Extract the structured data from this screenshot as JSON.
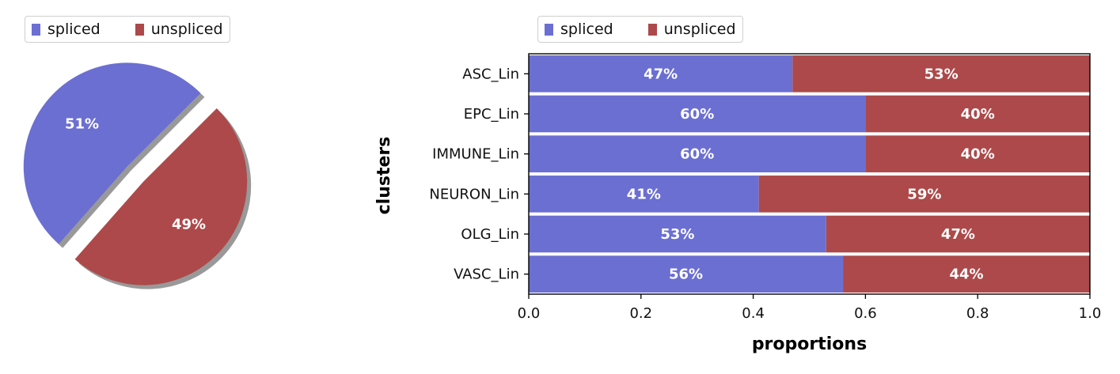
{
  "colors": {
    "spliced": "#6b6fd2",
    "unspliced": "#ad494a"
  },
  "legend": {
    "spliced": "spliced",
    "unspliced": "unspliced"
  },
  "chart_data": [
    {
      "type": "pie",
      "labels": [
        "spliced",
        "unspliced"
      ],
      "values": [
        0.51,
        0.49
      ],
      "data_labels": [
        "51%",
        "49%"
      ],
      "legend_position": "top-left",
      "exploded": true,
      "shadow": true
    },
    {
      "type": "bar",
      "orientation": "horizontal",
      "stacked": true,
      "categories": [
        "ASC_Lin",
        "EPC_Lin",
        "IMMUNE_Lin",
        "NEURON_Lin",
        "OLG_Lin",
        "VASC_Lin"
      ],
      "series": [
        {
          "name": "spliced",
          "values": [
            0.47,
            0.6,
            0.6,
            0.41,
            0.53,
            0.56
          ],
          "labels": [
            "47%",
            "60%",
            "60%",
            "41%",
            "53%",
            "56%"
          ]
        },
        {
          "name": "unspliced",
          "values": [
            0.53,
            0.4,
            0.4,
            0.59,
            0.47,
            0.44
          ],
          "labels": [
            "53%",
            "40%",
            "40%",
            "59%",
            "47%",
            "44%"
          ]
        }
      ],
      "xlabel": "proportions",
      "ylabel": "clusters",
      "xlim": [
        0,
        1
      ],
      "xticks": [
        "0.0",
        "0.2",
        "0.4",
        "0.6",
        "0.8",
        "1.0"
      ],
      "legend_position": "top-left"
    }
  ]
}
